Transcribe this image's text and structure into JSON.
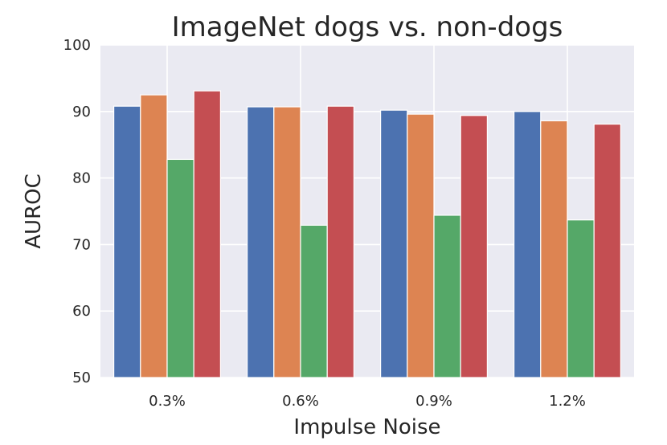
{
  "chart_data": {
    "type": "bar",
    "title": "ImageNet dogs vs. non-dogs",
    "xlabel": "Impulse Noise",
    "ylabel": "AUROC",
    "categories": [
      "0.3%",
      "0.6%",
      "0.9%",
      "1.2%"
    ],
    "ylim": [
      50,
      100
    ],
    "yticks": [
      50,
      60,
      70,
      80,
      90,
      100
    ],
    "grid": true,
    "legend": "none",
    "series": [
      {
        "values": [
          90.8,
          90.7,
          90.2,
          90.0
        ],
        "color": "#4c72b0"
      },
      {
        "values": [
          92.5,
          90.7,
          89.6,
          88.6
        ],
        "color": "#dd8452"
      },
      {
        "values": [
          82.8,
          72.9,
          74.4,
          73.7
        ],
        "color": "#55a868"
      },
      {
        "values": [
          93.1,
          90.8,
          89.4,
          88.1
        ],
        "color": "#c44e52"
      }
    ]
  }
}
